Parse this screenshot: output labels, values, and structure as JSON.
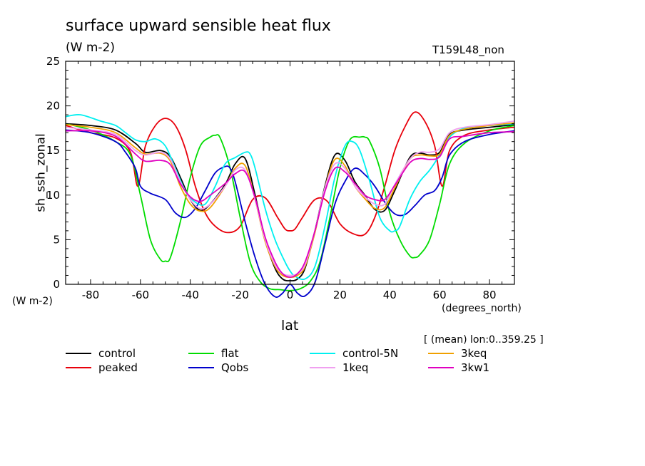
{
  "header": {
    "title": "surface upward sensible heat flux",
    "units": "(W m-2)",
    "run_id": "T159L48_non"
  },
  "axes": {
    "ylabel": "sh_ssh_zonal",
    "ylabel_units": "(W m-2)",
    "xlabel": "lat",
    "xlabel_units": "(degrees_north)",
    "mean_note": "[ (mean) lon:0..359.25 ]"
  },
  "chart_data": {
    "type": "line",
    "title": "surface upward sensible heat flux",
    "xlabel": "lat",
    "ylabel": "sh_ssh_zonal",
    "xlim": [
      -90,
      90
    ],
    "ylim": [
      0,
      25
    ],
    "xticks": [
      -80,
      -60,
      -40,
      -20,
      0,
      20,
      40,
      60,
      80
    ],
    "yticks": [
      0,
      5,
      10,
      15,
      20,
      25
    ],
    "grid": false,
    "legend_position": "bottom",
    "series": [
      {
        "name": "control",
        "color": "#000000",
        "x": [
          -90,
          -80,
          -70,
          -62,
          -58,
          -52,
          -48,
          -44,
          -40,
          -36,
          -32,
          -26,
          -22,
          -18,
          -14,
          -10,
          -6,
          -3,
          0,
          3,
          6,
          10,
          14,
          18,
          22,
          26,
          30,
          34,
          38,
          42,
          48,
          52,
          56,
          60,
          64,
          70,
          80,
          90
        ],
        "y": [
          18.0,
          17.8,
          17.3,
          15.8,
          14.8,
          15.0,
          14.3,
          12.0,
          9.5,
          8.3,
          9.0,
          11.2,
          13.5,
          14.1,
          10.0,
          5.0,
          1.8,
          0.6,
          0.4,
          0.6,
          1.8,
          6.0,
          11.0,
          14.5,
          13.9,
          11.5,
          10.0,
          8.4,
          8.3,
          10.5,
          14.2,
          14.7,
          14.5,
          14.8,
          16.8,
          17.3,
          17.6,
          17.9
        ]
      },
      {
        "name": "peaked",
        "color": "#e8000b",
        "x": [
          -90,
          -80,
          -70,
          -64,
          -61,
          -58,
          -54,
          -50,
          -46,
          -42,
          -38,
          -34,
          -30,
          -25,
          -20,
          -15,
          -10,
          -5,
          -2,
          0,
          2,
          5,
          10,
          15,
          20,
          25,
          30,
          34,
          38,
          42,
          46,
          50,
          54,
          58,
          61,
          64,
          70,
          80,
          90
        ],
        "y": [
          17.8,
          17.0,
          16.4,
          14.8,
          11.0,
          15.5,
          17.8,
          18.6,
          17.8,
          15.2,
          11.0,
          8.0,
          6.5,
          5.8,
          6.5,
          9.5,
          9.7,
          7.5,
          6.2,
          6.0,
          6.2,
          7.5,
          9.5,
          9.3,
          6.8,
          5.7,
          5.6,
          7.5,
          11.0,
          15.0,
          17.6,
          19.3,
          18.3,
          15.5,
          11.0,
          15.0,
          16.7,
          17.3,
          17.6
        ]
      },
      {
        "name": "flat",
        "color": "#00dc00",
        "x": [
          -90,
          -80,
          -70,
          -64,
          -60,
          -56,
          -52,
          -50,
          -48,
          -44,
          -40,
          -36,
          -32,
          -30,
          -28,
          -24,
          -20,
          -16,
          -12,
          -8,
          -4,
          0,
          4,
          8,
          12,
          16,
          20,
          24,
          28,
          30,
          32,
          36,
          40,
          44,
          48,
          50,
          52,
          56,
          60,
          64,
          70,
          80,
          90
        ],
        "y": [
          18.0,
          17.3,
          16.0,
          14.5,
          10.0,
          5.0,
          2.8,
          2.6,
          3.0,
          7.0,
          12.0,
          15.5,
          16.5,
          16.7,
          16.4,
          13.0,
          7.5,
          2.5,
          0.3,
          -0.5,
          -0.6,
          -0.7,
          -0.5,
          0.3,
          2.5,
          7.5,
          13.0,
          16.2,
          16.5,
          16.5,
          16.0,
          13.0,
          8.0,
          5.0,
          3.2,
          3.0,
          3.3,
          5.0,
          9.0,
          13.5,
          15.8,
          17.2,
          17.8
        ]
      },
      {
        "name": "Qobs",
        "color": "#0000cc",
        "x": [
          -90,
          -80,
          -70,
          -66,
          -62,
          -60,
          -56,
          -50,
          -46,
          -42,
          -38,
          -34,
          -30,
          -26,
          -24,
          -22,
          -18,
          -14,
          -10,
          -6,
          -3,
          0,
          3,
          6,
          10,
          14,
          18,
          22,
          26,
          30,
          34,
          38,
          42,
          46,
          50,
          54,
          58,
          61,
          64,
          70,
          80,
          90
        ],
        "y": [
          17.3,
          17.0,
          16.0,
          14.8,
          13.0,
          11.0,
          10.2,
          9.5,
          8.0,
          7.5,
          8.5,
          10.5,
          12.5,
          13.2,
          13.0,
          11.5,
          7.0,
          3.0,
          0.0,
          -1.4,
          -1.0,
          0.0,
          -1.0,
          -1.3,
          0.2,
          4.5,
          9.0,
          11.5,
          13.0,
          12.3,
          11.0,
          9.2,
          7.9,
          7.8,
          8.8,
          10.0,
          10.5,
          12.0,
          14.5,
          16.0,
          16.8,
          17.2
        ]
      },
      {
        "name": "control-5N",
        "color": "#00f0f0",
        "x": [
          -90,
          -84,
          -76,
          -70,
          -66,
          -62,
          -58,
          -54,
          -50,
          -46,
          -42,
          -38,
          -34,
          -30,
          -26,
          -22,
          -18,
          -16,
          -14,
          -10,
          -6,
          -2,
          0,
          2,
          6,
          10,
          14,
          18,
          22,
          25,
          28,
          32,
          36,
          40,
          42,
          44,
          48,
          52,
          56,
          60,
          64,
          70,
          80,
          90
        ],
        "y": [
          18.8,
          19.0,
          18.3,
          17.8,
          17.0,
          16.2,
          16.0,
          16.3,
          15.5,
          13.0,
          10.5,
          9.2,
          9.0,
          11.0,
          13.5,
          14.2,
          14.8,
          14.6,
          13.0,
          8.5,
          5.0,
          2.5,
          1.5,
          0.9,
          0.6,
          2.0,
          6.5,
          12.0,
          15.5,
          16.0,
          15.0,
          11.5,
          7.5,
          6.0,
          6.0,
          6.5,
          9.5,
          11.5,
          12.8,
          14.5,
          16.5,
          17.5,
          17.8,
          18.0
        ]
      },
      {
        "name": "3keq",
        "color": "#f0a000",
        "x": [
          -90,
          -80,
          -70,
          -62,
          -58,
          -52,
          -48,
          -44,
          -40,
          -36,
          -32,
          -26,
          -22,
          -18,
          -14,
          -10,
          -6,
          -3,
          0,
          3,
          6,
          10,
          14,
          18,
          22,
          26,
          30,
          34,
          38,
          42,
          48,
          52,
          56,
          60,
          64,
          70,
          80,
          90
        ],
        "y": [
          17.9,
          17.6,
          17.0,
          15.3,
          14.6,
          14.7,
          13.8,
          11.0,
          9.0,
          8.2,
          8.6,
          11.0,
          13.0,
          13.3,
          9.5,
          4.8,
          2.0,
          1.0,
          0.8,
          1.0,
          2.0,
          5.8,
          10.8,
          14.0,
          13.3,
          11.0,
          9.6,
          8.5,
          8.6,
          10.8,
          14.0,
          14.5,
          14.4,
          14.6,
          16.7,
          17.4,
          17.8,
          18.1
        ]
      },
      {
        "name": "1keq",
        "color": "#f0a0f0",
        "x": [
          -90,
          -80,
          -70,
          -62,
          -58,
          -52,
          -48,
          -44,
          -40,
          -36,
          -32,
          -26,
          -22,
          -18,
          -14,
          -10,
          -6,
          -3,
          0,
          3,
          6,
          10,
          14,
          18,
          22,
          26,
          30,
          34,
          38,
          42,
          48,
          52,
          56,
          60,
          64,
          70,
          80,
          90
        ],
        "y": [
          17.6,
          17.3,
          16.8,
          15.0,
          14.5,
          14.8,
          14.0,
          11.5,
          9.5,
          8.5,
          9.0,
          11.0,
          12.8,
          12.8,
          9.5,
          5.0,
          2.2,
          1.2,
          1.0,
          1.2,
          2.2,
          6.0,
          10.8,
          13.5,
          13.0,
          11.0,
          9.8,
          9.0,
          9.0,
          11.2,
          14.0,
          14.8,
          14.8,
          15.2,
          17.0,
          17.6,
          17.9,
          18.3
        ]
      },
      {
        "name": "3kw1",
        "color": "#e000c0",
        "x": [
          -90,
          -80,
          -70,
          -62,
          -58,
          -52,
          -48,
          -44,
          -40,
          -36,
          -32,
          -26,
          -22,
          -18,
          -14,
          -10,
          -6,
          -3,
          0,
          3,
          6,
          10,
          14,
          18,
          22,
          26,
          30,
          34,
          38,
          42,
          48,
          52,
          56,
          60,
          64,
          70,
          80,
          90
        ],
        "y": [
          17.2,
          17.2,
          16.6,
          14.6,
          13.8,
          13.9,
          13.4,
          11.3,
          9.8,
          9.3,
          10.0,
          11.3,
          12.4,
          12.6,
          9.7,
          5.3,
          2.5,
          1.2,
          0.8,
          1.2,
          2.5,
          6.0,
          10.4,
          13.0,
          12.6,
          11.3,
          10.0,
          9.5,
          9.5,
          11.1,
          13.6,
          14.1,
          14.0,
          14.3,
          16.3,
          16.6,
          17.0,
          17.1
        ]
      }
    ]
  },
  "legend": {
    "items": [
      {
        "name": "control",
        "color": "#000000"
      },
      {
        "name": "flat",
        "color": "#00dc00"
      },
      {
        "name": "control-5N",
        "color": "#00f0f0"
      },
      {
        "name": "3keq",
        "color": "#f0a000"
      },
      {
        "name": "peaked",
        "color": "#e8000b"
      },
      {
        "name": "Qobs",
        "color": "#0000cc"
      },
      {
        "name": "1keq",
        "color": "#f0a0f0"
      },
      {
        "name": "3kw1",
        "color": "#e000c0"
      }
    ]
  }
}
